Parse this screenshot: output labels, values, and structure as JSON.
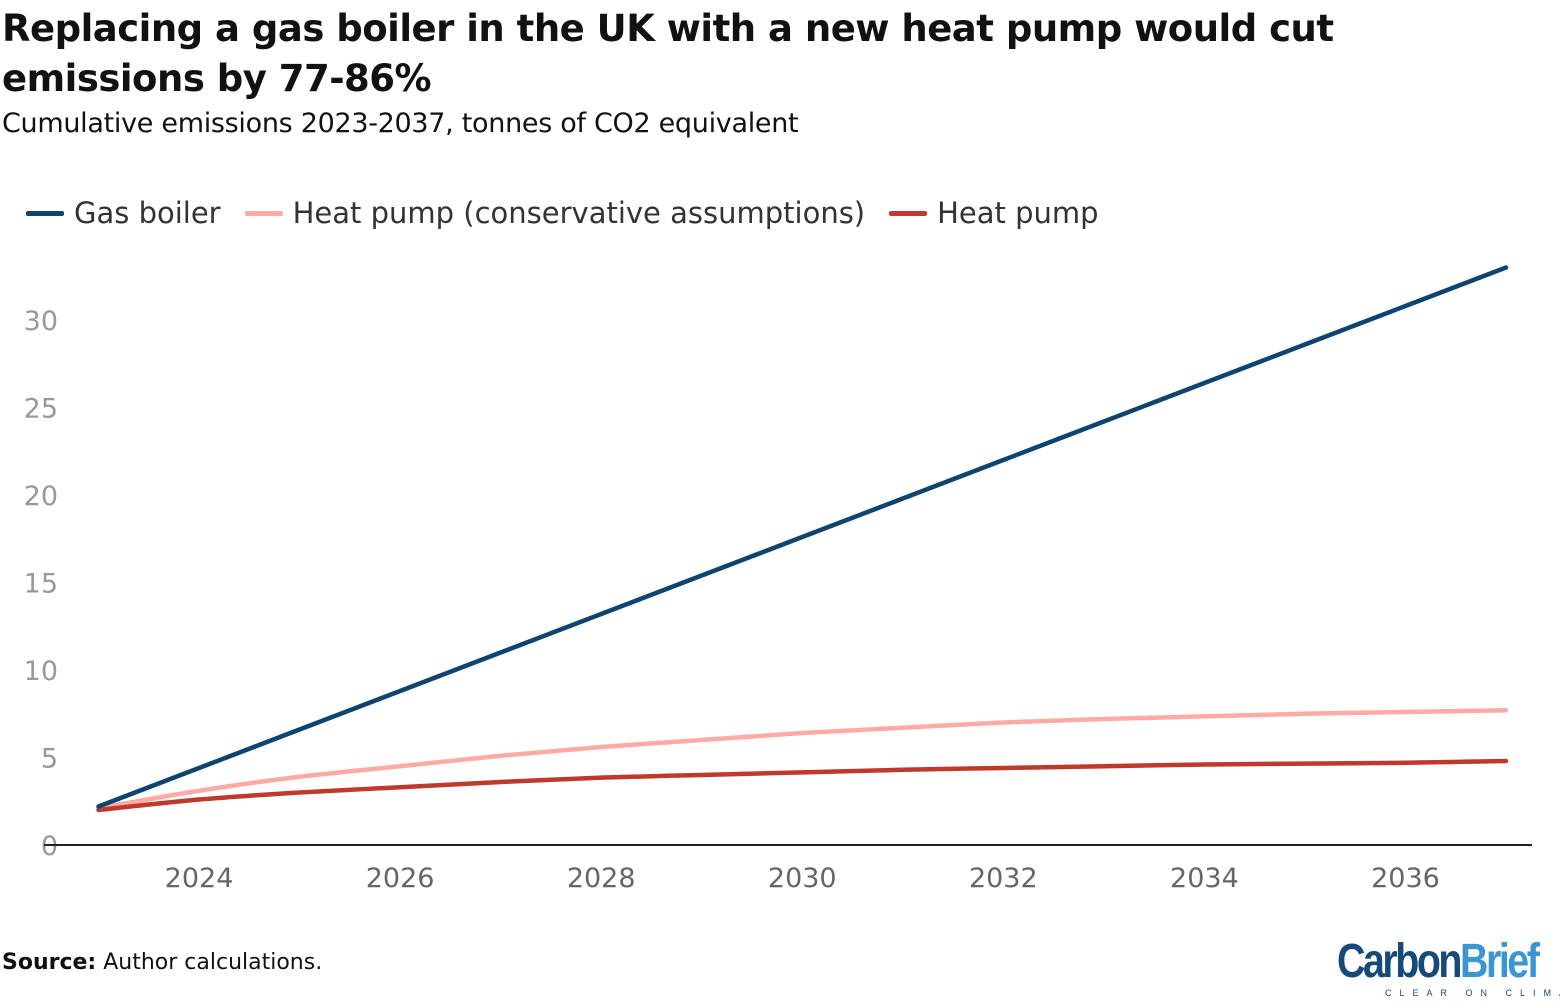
{
  "chart_data": {
    "type": "line",
    "title": "Replacing a gas boiler in the UK with a new heat pump would cut emissions by 77-86%",
    "subtitle": "Cumulative emissions 2023-2037, tonnes of CO2 equivalent",
    "xlabel": "",
    "ylabel": "",
    "x": [
      2023,
      2024,
      2025,
      2026,
      2027,
      2028,
      2029,
      2030,
      2031,
      2032,
      2033,
      2034,
      2035,
      2036,
      2037
    ],
    "xticks": [
      "2024",
      "2026",
      "2028",
      "2030",
      "2032",
      "2034",
      "2036"
    ],
    "xtick_values": [
      2024,
      2026,
      2028,
      2030,
      2032,
      2034,
      2036
    ],
    "yticks": [
      "0",
      "5",
      "10",
      "15",
      "20",
      "25",
      "30"
    ],
    "ytick_values": [
      0,
      5,
      10,
      15,
      20,
      25,
      30
    ],
    "ylim": [
      0,
      33
    ],
    "xlim": [
      2022.4,
      2037.25
    ],
    "grid": false,
    "legend_position": "top-left",
    "series": [
      {
        "name": "Gas boiler",
        "color": "#0f4470",
        "values": [
          2.2,
          4.4,
          6.6,
          8.8,
          11.0,
          13.2,
          15.4,
          17.6,
          19.8,
          22.0,
          24.2,
          26.4,
          28.6,
          30.8,
          33.0
        ]
      },
      {
        "name": "Heat pump (conservative assumptions)",
        "color": "#ffaaa5",
        "values": [
          2.1,
          3.1,
          3.9,
          4.5,
          5.1,
          5.6,
          6.0,
          6.4,
          6.7,
          7.0,
          7.2,
          7.35,
          7.5,
          7.6,
          7.7
        ]
      },
      {
        "name": "Heat pump",
        "color": "#c0392b",
        "values": [
          2.0,
          2.6,
          3.0,
          3.3,
          3.6,
          3.85,
          4.0,
          4.15,
          4.3,
          4.4,
          4.5,
          4.6,
          4.65,
          4.7,
          4.8
        ]
      }
    ]
  },
  "source": {
    "label": "Source:",
    "text": " Author calculations."
  },
  "logo": {
    "part1": "Carbon",
    "part2": "Brief",
    "tagline": "CLEAR ON CLIMATE"
  }
}
